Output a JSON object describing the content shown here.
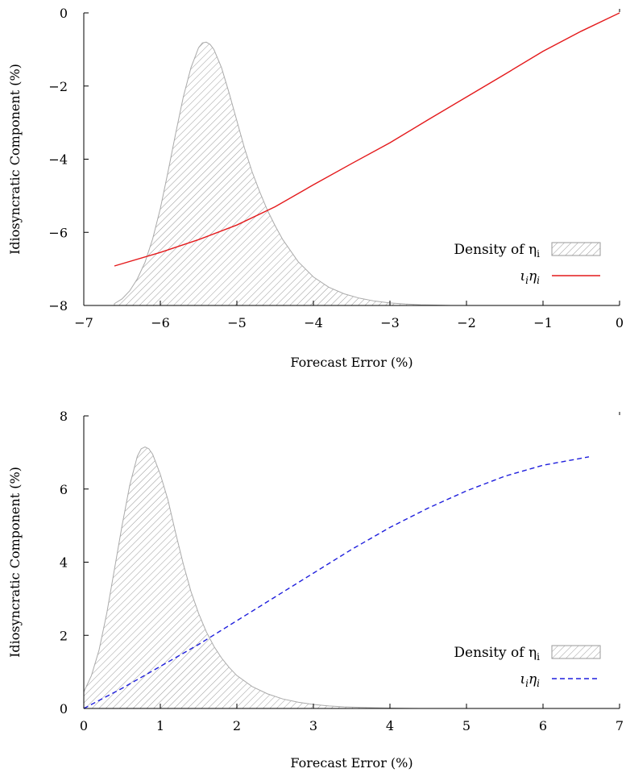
{
  "charts": [
    {
      "type": "line",
      "xlabel": "Forecast Error (%)",
      "ylabel": "Idiosyncratic Component (%)",
      "xlim": [
        -7,
        0
      ],
      "ylim": [
        -8,
        0
      ],
      "xticks": [
        -7,
        -6,
        -5,
        -4,
        -3,
        -2,
        -1,
        0
      ],
      "xtick_labels": [
        "−7",
        "−6",
        "−5",
        "−4",
        "−3",
        "−2",
        "−1",
        "0"
      ],
      "yticks": [
        -8,
        -6,
        -4,
        -2,
        0
      ],
      "ytick_labels": [
        "−8",
        "−6",
        "−4",
        "−2",
        "0"
      ],
      "legend_position": "bottom-right",
      "legend": {
        "density_label": "Density of η",
        "density_sub": "i",
        "line_label_1": "ι",
        "line_label_2": "η",
        "line_label_sub": "i"
      },
      "density": {
        "name": "Density of η_i",
        "style": "hatched",
        "color": "#aaaaaa",
        "x": [
          -6.6,
          -6.5,
          -6.4,
          -6.3,
          -6.2,
          -6.1,
          -6.0,
          -5.9,
          -5.8,
          -5.7,
          -5.6,
          -5.5,
          -5.45,
          -5.4,
          -5.35,
          -5.3,
          -5.2,
          -5.1,
          -5.0,
          -4.9,
          -4.8,
          -4.7,
          -4.6,
          -4.5,
          -4.4,
          -4.2,
          -4.0,
          -3.8,
          -3.6,
          -3.4,
          -3.2,
          -3.0,
          -2.8,
          -2.6,
          -2.4,
          -2.2,
          -2.0,
          -1.8
        ],
        "y": [
          -7.95,
          -7.82,
          -7.6,
          -7.27,
          -6.82,
          -6.18,
          -5.35,
          -4.35,
          -3.3,
          -2.3,
          -1.5,
          -0.95,
          -0.82,
          -0.8,
          -0.86,
          -1.0,
          -1.5,
          -2.2,
          -2.95,
          -3.7,
          -4.35,
          -4.9,
          -5.4,
          -5.82,
          -6.2,
          -6.8,
          -7.22,
          -7.5,
          -7.68,
          -7.8,
          -7.88,
          -7.93,
          -7.96,
          -7.98,
          -7.99,
          -8.0,
          -8.0,
          -8.0
        ]
      },
      "series": [
        {
          "name": "ι_i η_i",
          "color": "#e41a1c",
          "dash": "solid",
          "x": [
            -6.6,
            -6.0,
            -5.5,
            -5.0,
            -4.5,
            -4.0,
            -3.5,
            -3.0,
            -2.5,
            -2.0,
            -1.5,
            -1.0,
            -0.5,
            0.0
          ],
          "y": [
            -6.92,
            -6.55,
            -6.2,
            -5.8,
            -5.3,
            -4.7,
            -4.12,
            -3.55,
            -2.92,
            -2.3,
            -1.68,
            -1.05,
            -0.5,
            0.0
          ]
        }
      ]
    },
    {
      "type": "line",
      "xlabel": "Forecast Error (%)",
      "ylabel": "Idiosyncratic Component (%)",
      "xlim": [
        0,
        7
      ],
      "ylim": [
        0,
        8
      ],
      "xticks": [
        0,
        1,
        2,
        3,
        4,
        5,
        6,
        7
      ],
      "xtick_labels": [
        "0",
        "1",
        "2",
        "3",
        "4",
        "5",
        "6",
        "7"
      ],
      "yticks": [
        0,
        2,
        4,
        6,
        8
      ],
      "ytick_labels": [
        "0",
        "2",
        "4",
        "6",
        "8"
      ],
      "legend_position": "bottom-right",
      "legend": {
        "density_label": "Density of η",
        "density_sub": "i",
        "line_label_1": "ι",
        "line_label_2": "η",
        "line_label_sub": "i"
      },
      "density": {
        "name": "Density of η_i",
        "style": "hatched",
        "color": "#aaaaaa",
        "x": [
          0.0,
          0.1,
          0.2,
          0.3,
          0.4,
          0.5,
          0.6,
          0.7,
          0.75,
          0.8,
          0.85,
          0.9,
          1.0,
          1.1,
          1.2,
          1.3,
          1.4,
          1.5,
          1.6,
          1.7,
          1.8,
          1.9,
          2.0,
          2.2,
          2.4,
          2.6,
          2.8,
          3.0,
          3.2,
          3.4,
          3.6,
          3.8,
          4.0,
          4.4,
          4.8
        ],
        "y": [
          0.45,
          0.9,
          1.6,
          2.6,
          3.8,
          5.0,
          6.1,
          6.9,
          7.1,
          7.15,
          7.1,
          6.95,
          6.4,
          5.7,
          4.8,
          3.95,
          3.2,
          2.6,
          2.1,
          1.7,
          1.38,
          1.12,
          0.9,
          0.6,
          0.4,
          0.26,
          0.17,
          0.11,
          0.07,
          0.045,
          0.03,
          0.02,
          0.01,
          0.0,
          0.0
        ]
      },
      "series": [
        {
          "name": "ι_i η_i",
          "color": "#1f1fdd",
          "dash": "dashed",
          "x": [
            0.0,
            0.5,
            1.0,
            1.5,
            2.0,
            2.5,
            3.0,
            3.5,
            4.0,
            4.5,
            5.0,
            5.5,
            6.0,
            6.6
          ],
          "y": [
            0.0,
            0.55,
            1.15,
            1.75,
            2.4,
            3.05,
            3.7,
            4.35,
            4.95,
            5.48,
            5.95,
            6.35,
            6.65,
            6.88
          ]
        }
      ]
    }
  ]
}
